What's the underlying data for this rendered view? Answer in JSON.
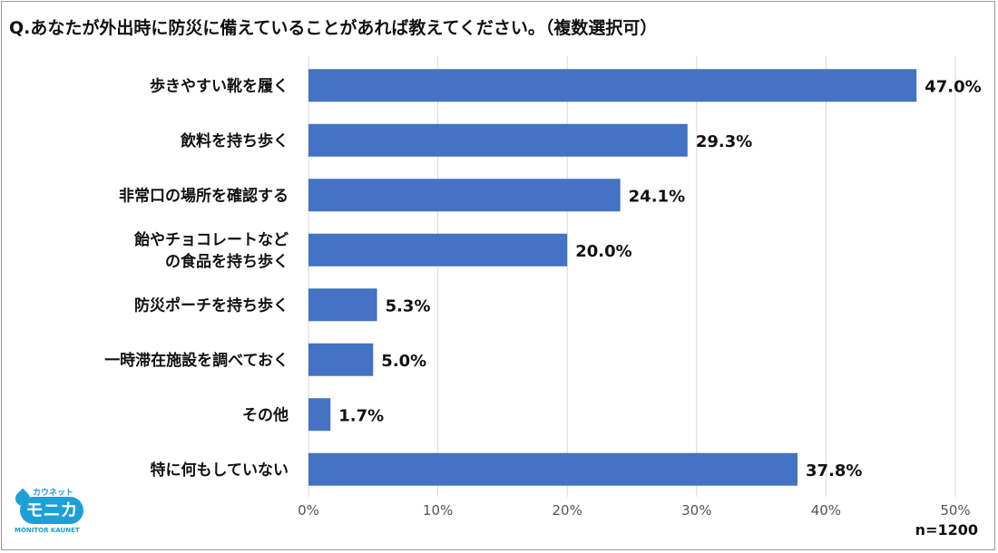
{
  "title": "Q.あなたが外出時に防災に備えていることがあれば教えてください。（複数選択可）",
  "sample_size": "n=1200",
  "logo": {
    "top_text": "カウネット",
    "main_text": "モニカ",
    "bottom_text": "MONITOR KAUNET"
  },
  "colors": {
    "bar": "#4472c4",
    "grid": "#d9d9d9",
    "logo": "#1d9fd8"
  },
  "chart_data": {
    "type": "bar",
    "orientation": "horizontal",
    "categories": [
      [
        "歩きやすい靴を履く"
      ],
      [
        "飲料を持ち歩く"
      ],
      [
        "非常口の場所を確認する"
      ],
      [
        "飴やチョコレートなど",
        "の食品を持ち歩く"
      ],
      [
        "防災ポーチを持ち歩く"
      ],
      [
        "一時滞在施設を調べておく"
      ],
      [
        "その他"
      ],
      [
        "特に何もしていない"
      ]
    ],
    "values": [
      47.0,
      29.3,
      24.1,
      20.0,
      5.3,
      5.0,
      1.7,
      37.8
    ],
    "value_labels": [
      "47.0%",
      "29.3%",
      "24.1%",
      "20.0%",
      "5.3%",
      "5.0%",
      "1.7%",
      "37.8%"
    ],
    "xlim": [
      0,
      50
    ],
    "ticks": [
      0,
      10,
      20,
      30,
      40,
      50
    ],
    "tick_labels": [
      "0%",
      "10%",
      "20%",
      "30%",
      "40%",
      "50%"
    ],
    "grid": true
  }
}
